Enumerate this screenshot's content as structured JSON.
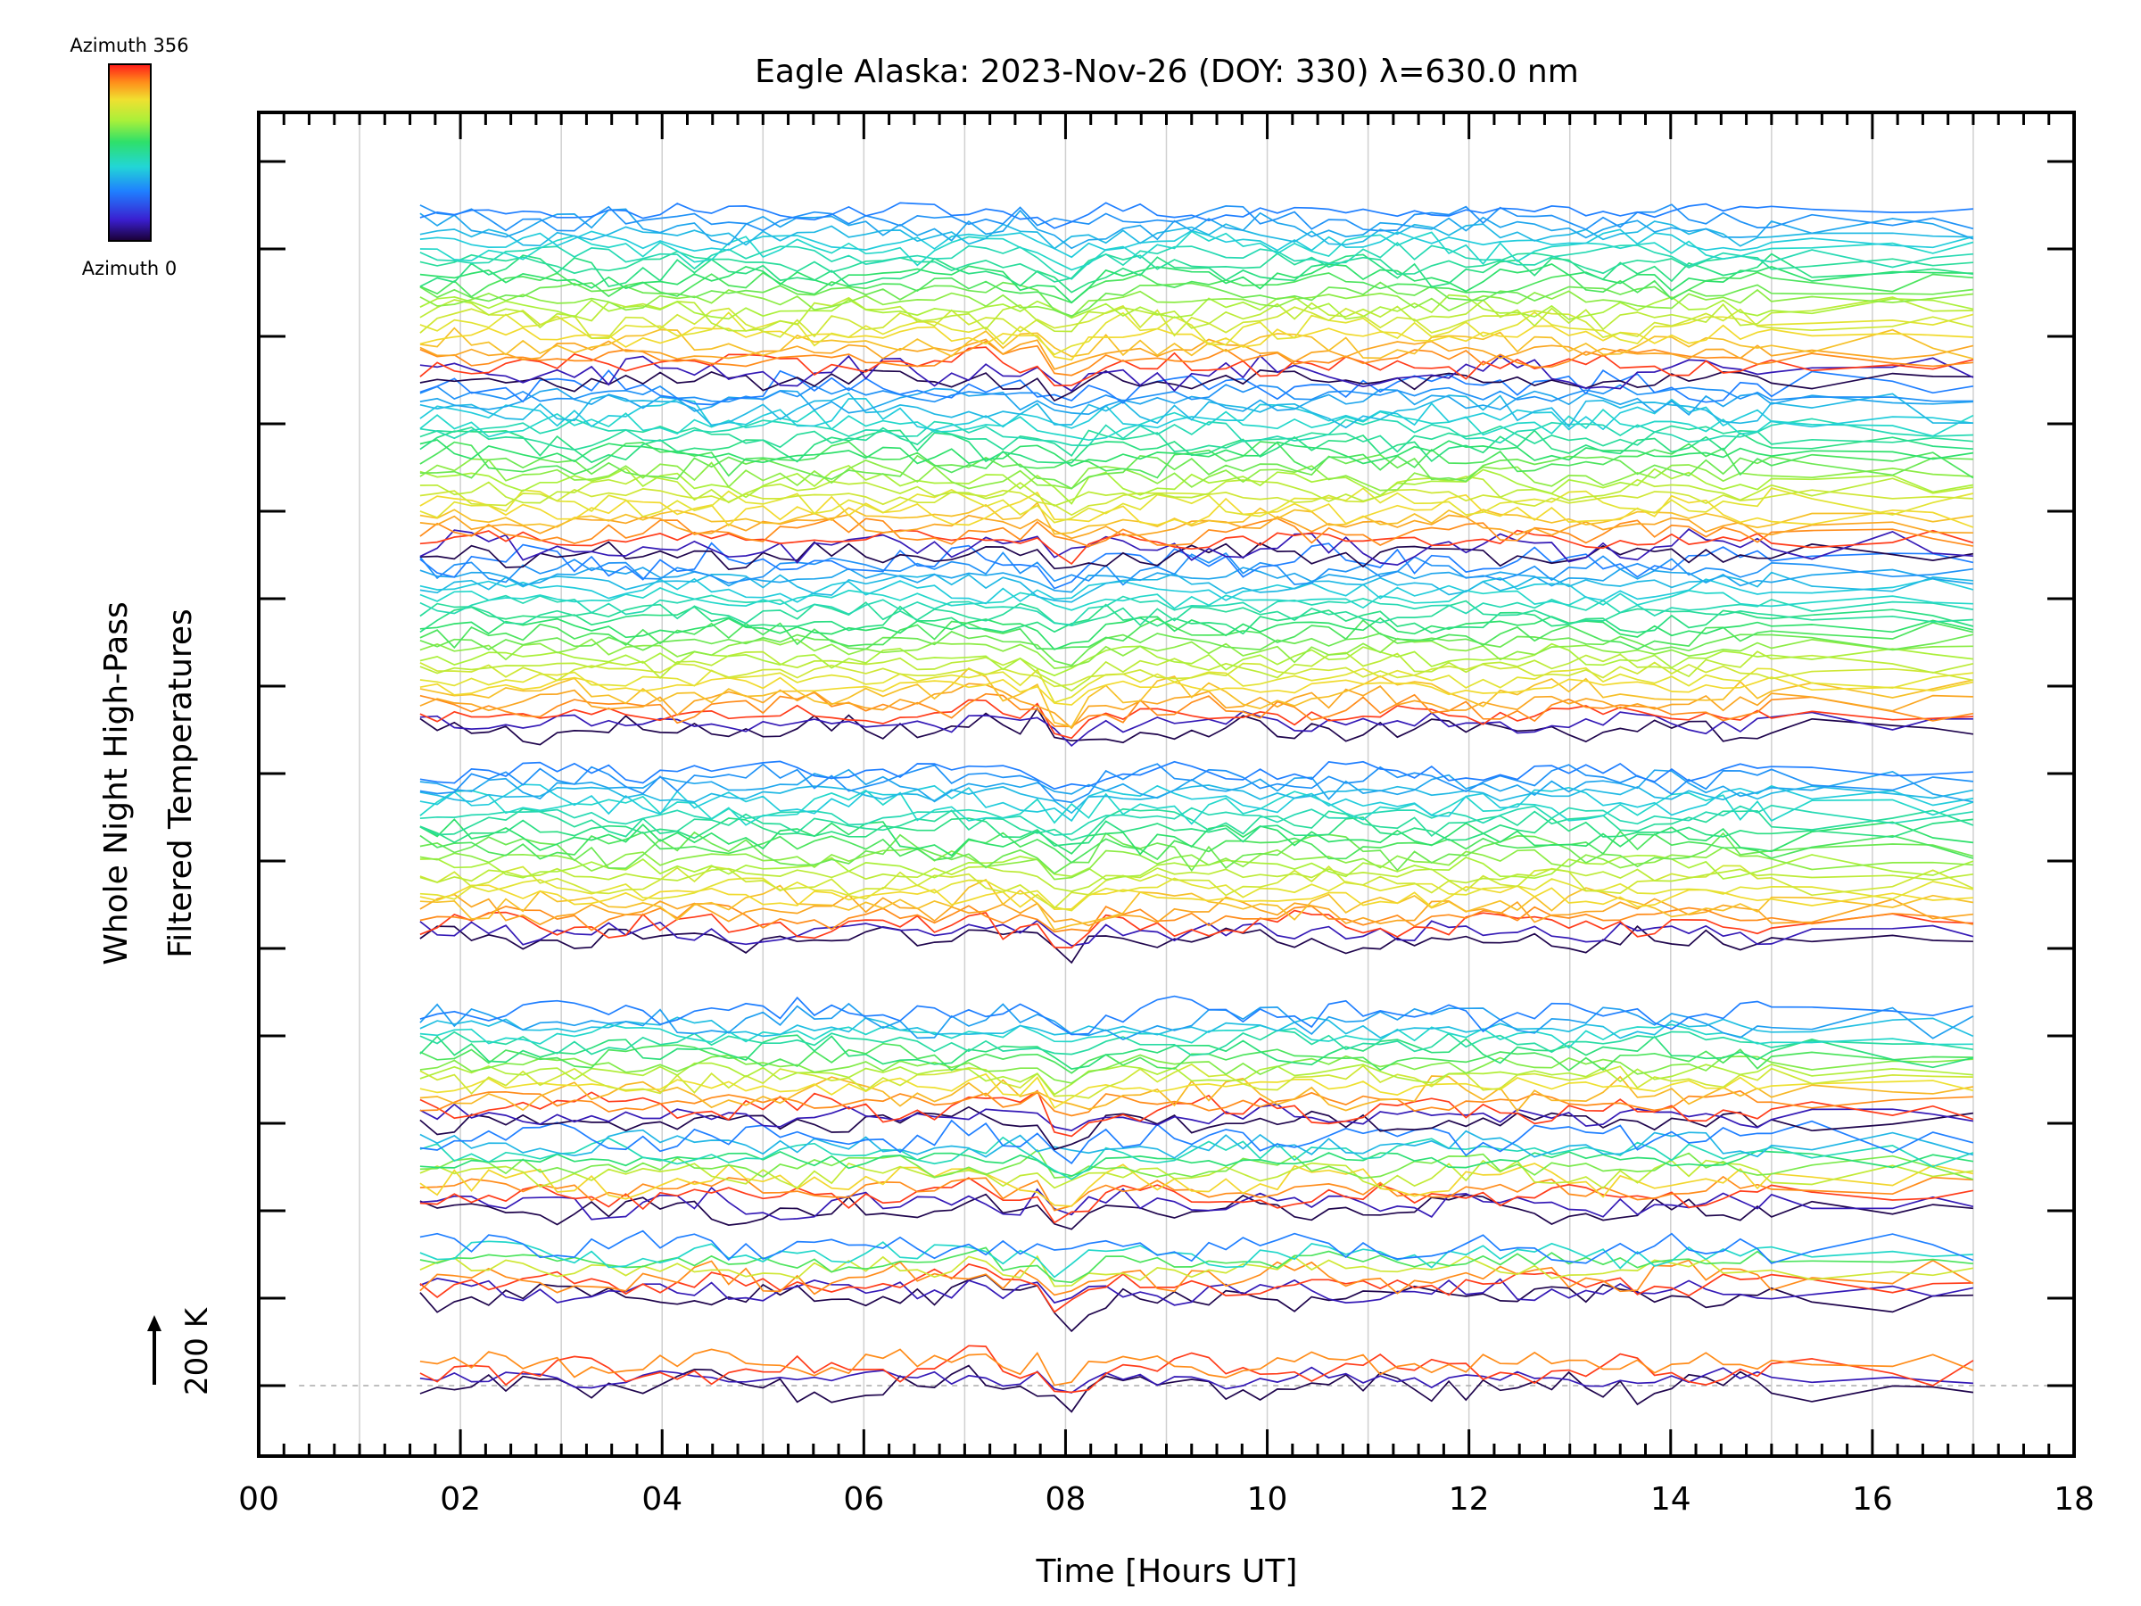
{
  "chart_data": {
    "type": "line",
    "title": "Eagle Alaska: 2023-Nov-26 (DOY: 330) λ=630.0 nm",
    "xlabel": "Time [Hours UT]",
    "ylabel_line1": "Whole Night High-Pass",
    "ylabel_line2": "Filtered Temperatures",
    "scale_label": "200 K",
    "xlim": [
      0,
      18
    ],
    "x_ticks": [
      "00",
      "02",
      "04",
      "06",
      "08",
      "10",
      "12",
      "14",
      "16",
      "18"
    ],
    "x_range_of_data": [
      1.6,
      17.0
    ],
    "grid_vertical_every_hours": 1,
    "n_ytick_levels": 15,
    "colorbar": {
      "label_top": "Azimuth 356",
      "label_bottom": "Azimuth 0",
      "min": 0,
      "max": 356,
      "colormap": "rainbow"
    },
    "series_groups": [
      {
        "name": "group-1",
        "baseline_level": 0,
        "traces": 4
      },
      {
        "name": "group-2",
        "baseline_level": 1,
        "traces": 8
      },
      {
        "name": "group-3",
        "baseline_level": 2,
        "traces": 11
      },
      {
        "name": "group-4",
        "baseline_level": 3,
        "traces": 16
      },
      {
        "name": "group-5",
        "baseline_level": 5.1,
        "traces": 24
      },
      {
        "name": "group-6",
        "baseline_level": 7.5,
        "traces": 24
      },
      {
        "name": "group-7",
        "baseline_level": 9.5,
        "traces": 24
      },
      {
        "name": "group-8",
        "baseline_level": 11.5,
        "traces": 24
      }
    ],
    "disturbance_time_hours": 8.0
  },
  "colors": {
    "background": "#ffffff",
    "axis": "#000000",
    "grid": "#d0d0d0"
  }
}
